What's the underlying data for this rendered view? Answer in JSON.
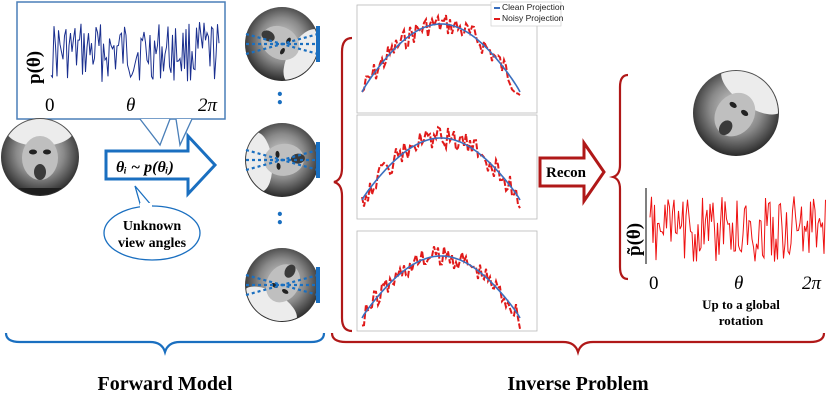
{
  "forward": {
    "pdf_label": "p(θ)",
    "axis_start": "0",
    "axis_mid": "θ",
    "axis_end": "2π",
    "arrow_label": "θᵢ ~ p(θᵢ)",
    "unknown_bubble_line1": "Unknown",
    "unknown_bubble_line2": "view angles",
    "dots": ":",
    "caption": "Forward Model",
    "brace_color": "#1a6fc0"
  },
  "inverse": {
    "legend_clean": "Clean Projection",
    "legend_noisy": "Noisy Projection",
    "recon_label": "Recon",
    "pdf_label": "p̃(θ)",
    "axis_start": "0",
    "axis_mid": "θ",
    "axis_end": "2π",
    "note_line1": "Up to a global",
    "note_line2": "rotation",
    "caption": "Inverse Problem",
    "brace_color": "#b01818"
  },
  "colors": {
    "pdf_blue": "#1a2f8f",
    "pdf_red": "#ee1111",
    "clean_line": "#3a6fbf",
    "noisy_line": "#e01a1a",
    "accent_blue": "#1a6fc0",
    "accent_red": "#b01818"
  }
}
